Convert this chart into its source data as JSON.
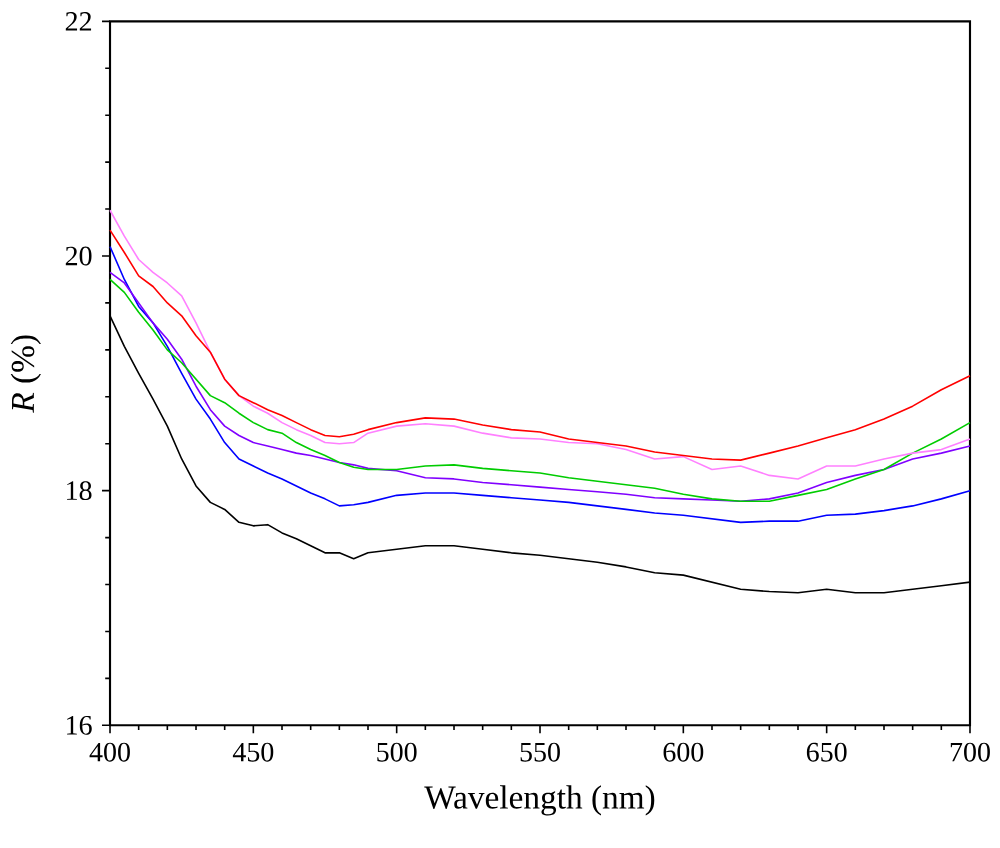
{
  "chart_data": {
    "type": "line",
    "xlabel": "Wavelength (nm)",
    "ylabel": "*R* (%)",
    "xlim": [
      400,
      700
    ],
    "ylim": [
      16,
      22
    ],
    "xticks": [
      400,
      450,
      500,
      550,
      600,
      650,
      700
    ],
    "yticks": [
      16,
      18,
      20,
      22
    ],
    "x": [
      400,
      405,
      410,
      415,
      420,
      425,
      430,
      435,
      440,
      445,
      450,
      455,
      460,
      465,
      470,
      475,
      480,
      485,
      490,
      500,
      510,
      520,
      530,
      540,
      550,
      560,
      570,
      580,
      590,
      600,
      610,
      620,
      630,
      640,
      650,
      660,
      670,
      680,
      690,
      700
    ],
    "series": [
      {
        "color": "#000000",
        "values": [
          19.49,
          19.23,
          19.0,
          18.78,
          18.55,
          18.27,
          18.04,
          17.9,
          17.84,
          17.73,
          17.7,
          17.71,
          17.64,
          17.59,
          17.53,
          17.47,
          17.47,
          17.42,
          17.47,
          17.5,
          17.53,
          17.53,
          17.5,
          17.47,
          17.45,
          17.42,
          17.39,
          17.35,
          17.3,
          17.28,
          17.22,
          17.16,
          17.14,
          17.13,
          17.16,
          17.13,
          17.13,
          17.16,
          17.19,
          17.22
        ]
      },
      {
        "color": "#0000ff",
        "values": [
          20.08,
          19.8,
          19.57,
          19.43,
          19.23,
          19.0,
          18.78,
          18.61,
          18.41,
          18.27,
          18.21,
          18.15,
          18.1,
          18.04,
          17.98,
          17.93,
          17.87,
          17.88,
          17.9,
          17.96,
          17.98,
          17.98,
          17.96,
          17.94,
          17.92,
          17.9,
          17.87,
          17.84,
          17.81,
          17.79,
          17.76,
          17.73,
          17.74,
          17.74,
          17.79,
          17.8,
          17.83,
          17.87,
          17.93,
          18.0
        ]
      },
      {
        "color": "#8000ff",
        "values": [
          19.86,
          19.77,
          19.6,
          19.43,
          19.29,
          19.12,
          18.89,
          18.69,
          18.55,
          18.47,
          18.41,
          18.38,
          18.35,
          18.32,
          18.3,
          18.27,
          18.24,
          18.22,
          18.19,
          18.17,
          18.11,
          18.1,
          18.07,
          18.05,
          18.03,
          18.01,
          17.99,
          17.97,
          17.94,
          17.93,
          17.92,
          17.91,
          17.93,
          17.98,
          18.07,
          18.13,
          18.18,
          18.27,
          18.32,
          18.38
        ]
      },
      {
        "color": "#00cc00",
        "values": [
          19.8,
          19.69,
          19.52,
          19.37,
          19.2,
          19.09,
          18.95,
          18.81,
          18.75,
          18.66,
          18.58,
          18.52,
          18.49,
          18.41,
          18.35,
          18.3,
          18.24,
          18.2,
          18.18,
          18.18,
          18.21,
          18.22,
          18.19,
          18.17,
          18.15,
          18.11,
          18.08,
          18.05,
          18.02,
          17.97,
          17.93,
          17.91,
          17.91,
          17.96,
          18.01,
          18.1,
          18.18,
          18.32,
          18.44,
          18.58
        ]
      },
      {
        "color": "#ff80ff",
        "values": [
          20.39,
          20.17,
          19.97,
          19.86,
          19.77,
          19.66,
          19.43,
          19.18,
          18.95,
          18.81,
          18.72,
          18.66,
          18.58,
          18.52,
          18.47,
          18.41,
          18.4,
          18.41,
          18.49,
          18.55,
          18.57,
          18.55,
          18.49,
          18.45,
          18.44,
          18.41,
          18.4,
          18.35,
          18.27,
          18.29,
          18.18,
          18.21,
          18.13,
          18.1,
          18.21,
          18.21,
          18.27,
          18.32,
          18.35,
          18.44
        ]
      },
      {
        "color": "#ff0000",
        "values": [
          20.22,
          20.03,
          19.83,
          19.74,
          19.6,
          19.49,
          19.32,
          19.18,
          18.95,
          18.81,
          18.75,
          18.69,
          18.64,
          18.58,
          18.52,
          18.47,
          18.46,
          18.48,
          18.52,
          18.58,
          18.62,
          18.61,
          18.56,
          18.52,
          18.5,
          18.44,
          18.41,
          18.38,
          18.33,
          18.3,
          18.27,
          18.26,
          18.32,
          18.38,
          18.45,
          18.52,
          18.61,
          18.72,
          18.86,
          18.98
        ]
      }
    ]
  }
}
